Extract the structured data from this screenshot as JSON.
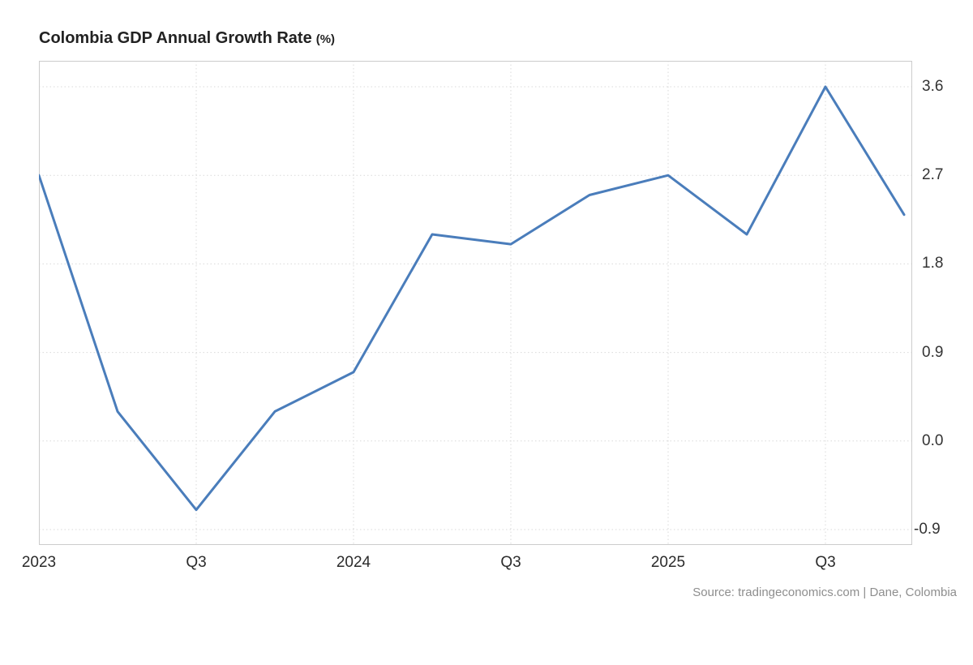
{
  "chart": {
    "title": "Colombia GDP Annual Growth Rate",
    "unit": "(%)",
    "source": "Source: tradingeconomics.com | Dane, Colombia"
  },
  "chart_data": {
    "type": "line",
    "title": "Colombia GDP Annual Growth Rate (%)",
    "x": [
      "2023 Q1",
      "2023 Q2",
      "2023 Q3",
      "2023 Q4",
      "2024 Q1",
      "2024 Q2",
      "2024 Q3",
      "2024 Q4",
      "2025 Q1",
      "2025 Q2",
      "2025 Q3",
      "2025 Q4"
    ],
    "values": [
      2.7,
      0.3,
      -0.7,
      0.3,
      0.7,
      2.1,
      2.0,
      2.5,
      2.7,
      2.1,
      3.6,
      2.3
    ],
    "x_tick_indices": [
      0,
      2,
      4,
      6,
      8,
      10
    ],
    "x_tick_labels": [
      "2023",
      "Q3",
      "2024",
      "Q3",
      "2025",
      "Q3"
    ],
    "y_ticks": [
      "3.6",
      "2.7",
      "1.8",
      "0.9",
      "0.0",
      "-0.9"
    ],
    "ylim": [
      -1.06,
      3.86
    ],
    "xlabel": "",
    "ylabel": "",
    "line_color": "#4a7dbb",
    "grid": true,
    "legend": false
  }
}
